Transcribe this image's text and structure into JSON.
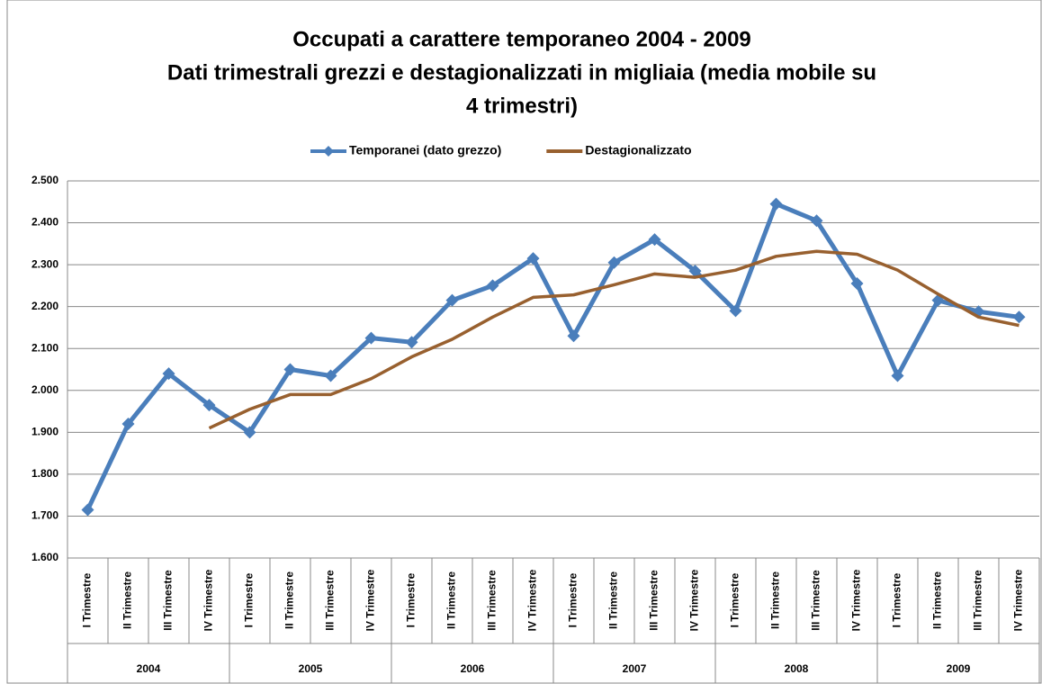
{
  "chart_data": {
    "type": "line",
    "title": [
      "Occupati a carattere temporaneo 2004 - 2009",
      "Dati trimestrali grezzi e destagionalizzati  in migliaia (media mobile su",
      "4 trimestri)"
    ],
    "categories": [
      "I Trimestre",
      "II Trimestre",
      "III Trimestre",
      "IV Trimestre",
      "I Trimestre",
      "II Trimestre",
      "III Trimestre",
      "IV Trimestre",
      "I Trimestre",
      "II Trimestre",
      "III Trimestre",
      "IV Trimestre",
      "I Trimestre",
      "II Trimestre",
      "III Trimestre",
      "IV Trimestre",
      "I Trimestre",
      "II Trimestre",
      "III Trimestre",
      "IV Trimestre",
      "I Trimestre",
      "II Trimestre",
      "III Trimestre",
      "IV Trimestre"
    ],
    "category_groups": [
      "2004",
      "2005",
      "2006",
      "2007",
      "2008",
      "2009"
    ],
    "series": [
      {
        "name": "Temporanei (dato grezzo)",
        "color": "#4a7ebb",
        "marker": true,
        "values": [
          1715,
          1920,
          2040,
          1965,
          1900,
          2050,
          2035,
          2125,
          2115,
          2215,
          2250,
          2315,
          2130,
          2305,
          2360,
          2285,
          2190,
          2445,
          2405,
          2255,
          2035,
          2215,
          2188,
          2175
        ]
      },
      {
        "name": "Destagionalizzato",
        "color": "#98602f",
        "marker": false,
        "values": [
          null,
          null,
          null,
          1910,
          1955,
          1990,
          1990,
          2028,
          2080,
          2122,
          2175,
          2222,
          2228,
          2252,
          2278,
          2270,
          2287,
          2320,
          2332,
          2325,
          2287,
          2230,
          2175,
          2155
        ]
      }
    ],
    "ylim": [
      1600,
      2500
    ],
    "yticks": [
      {
        "value": 1600,
        "label": "1.600"
      },
      {
        "value": 1700,
        "label": "1.700"
      },
      {
        "value": 1800,
        "label": "1.800"
      },
      {
        "value": 1900,
        "label": "1.900"
      },
      {
        "value": 2000,
        "label": "2.000"
      },
      {
        "value": 2100,
        "label": "2.100"
      },
      {
        "value": 2200,
        "label": "2.200"
      },
      {
        "value": 2300,
        "label": "2.300"
      },
      {
        "value": 2400,
        "label": "2.400"
      },
      {
        "value": 2500,
        "label": "2.500"
      }
    ],
    "grid": true,
    "legend": "top"
  }
}
